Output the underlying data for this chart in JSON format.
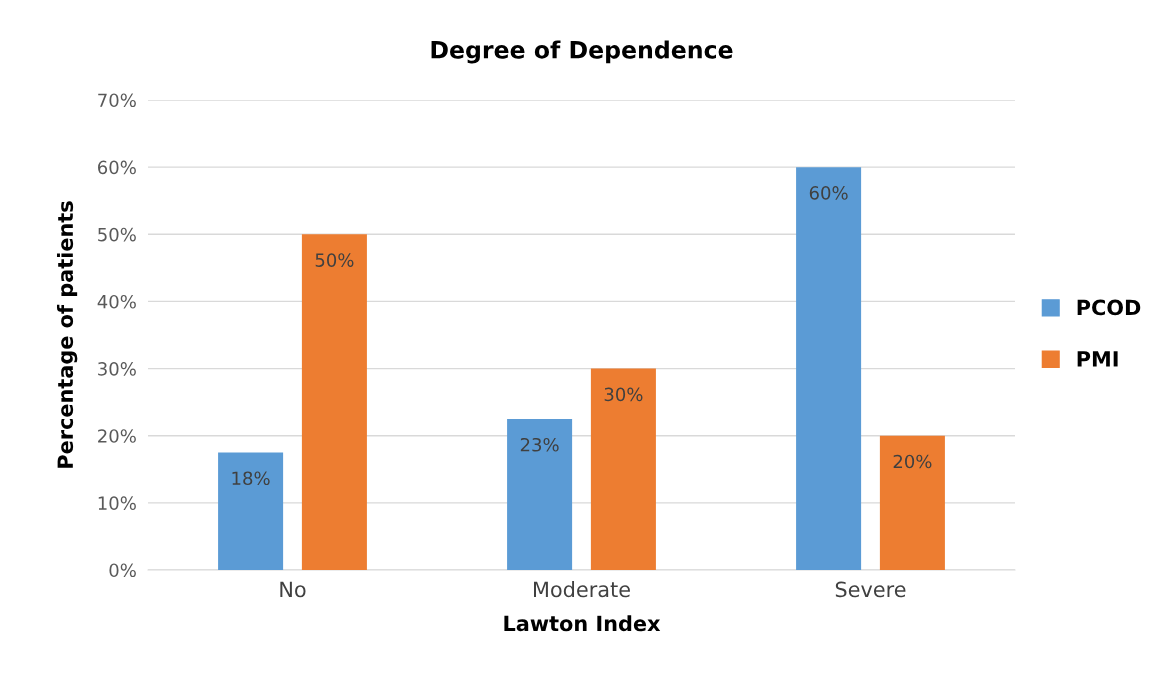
{
  "chart_data": {
    "type": "bar",
    "title": "Degree of Dependence",
    "xlabel": "Lawton Index",
    "ylabel": "Percentage of patients",
    "categories": [
      "No",
      "Moderate",
      "Severe"
    ],
    "series": [
      {
        "name": "PCOD",
        "color": "#5b9bd5",
        "values": [
          17.5,
          22.5,
          60
        ],
        "value_labels": [
          "18%",
          "23%",
          "60%"
        ]
      },
      {
        "name": "PMI",
        "color": "#ed7d31",
        "values": [
          50,
          30,
          20
        ],
        "value_labels": [
          "50%",
          "30%",
          "20%"
        ]
      }
    ],
    "ylim": [
      0,
      70
    ],
    "yticks": [
      {
        "value": 0,
        "label": "0%"
      },
      {
        "value": 10,
        "label": "10%"
      },
      {
        "value": 20,
        "label": "20%"
      },
      {
        "value": 30,
        "label": "30%"
      },
      {
        "value": 40,
        "label": "40%"
      },
      {
        "value": 50,
        "label": "50%"
      },
      {
        "value": 60,
        "label": "60%"
      },
      {
        "value": 70,
        "label": "70%"
      }
    ],
    "grid": "y",
    "legend": "right"
  }
}
